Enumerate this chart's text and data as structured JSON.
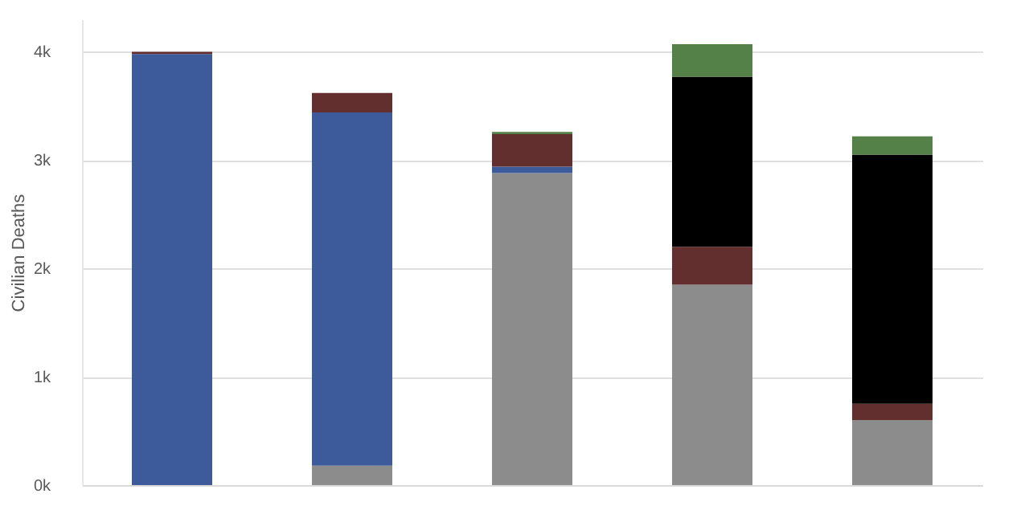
{
  "chart_data": {
    "type": "bar",
    "stacked": true,
    "ylabel": "Civilian Deaths",
    "categories": [
      null,
      null,
      null,
      null,
      null
    ],
    "series": [
      {
        "color": "#8c8c8c",
        "values": [
          0,
          180,
          2880,
          1850,
          600
        ]
      },
      {
        "color": "#3d5a9a",
        "values": [
          3980,
          3260,
          60,
          0,
          0
        ]
      },
      {
        "color": "#632e2e",
        "values": [
          20,
          180,
          300,
          350,
          150
        ]
      },
      {
        "color": "#000000",
        "values": [
          0,
          0,
          0,
          1570,
          2300
        ]
      },
      {
        "color": "#548147",
        "values": [
          0,
          0,
          20,
          300,
          170
        ]
      }
    ],
    "ylim": [
      0,
      4300
    ],
    "yticks": [
      {
        "value": 0,
        "label": "0k"
      },
      {
        "value": 1000,
        "label": "1k"
      },
      {
        "value": 2000,
        "label": "2k"
      },
      {
        "value": 3000,
        "label": "3k"
      },
      {
        "value": 4000,
        "label": "4k"
      }
    ],
    "grid": "y",
    "legend": false
  }
}
